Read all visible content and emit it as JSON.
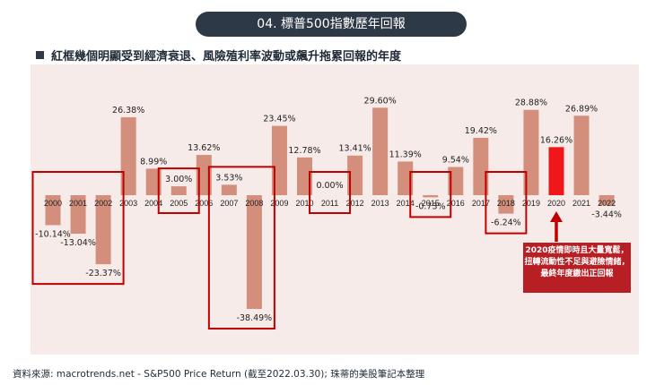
{
  "header": {
    "title": "04. 標普500指數歷年回報"
  },
  "subtitle": "紅框幾個明顯受到經濟衰退、風險殖利率波動或飆升拖累回報的年度",
  "source": "資料來源: macrotrends.net - S&P500  Price Return (截至2022.03.30); 珠蒂的美股筆記本整理",
  "annotation": "2020疫情即時且大量寬鬆，扭轉流動性不足與避險情緒，最終年度繳出正回報",
  "colors": {
    "bar": "#d38f7c",
    "highlight": "#f0171a",
    "box": "#c00000",
    "panel": "#f6ebe8",
    "arrow": "#c00000"
  },
  "chart_data": {
    "type": "bar",
    "title": "04. 標普500指數歷年回報",
    "xlabel": "",
    "ylabel": "",
    "ylim": [
      -40,
      31
    ],
    "categories": [
      "2000",
      "2001",
      "2002",
      "2003",
      "2004",
      "2005",
      "2006",
      "2007",
      "2008",
      "2009",
      "2010",
      "2011",
      "2012",
      "2013",
      "2014",
      "2015",
      "2016",
      "2017",
      "2018",
      "2019",
      "2020",
      "2021",
      "2022"
    ],
    "values": [
      -10.14,
      -13.04,
      -23.37,
      26.38,
      8.99,
      3.0,
      13.62,
      3.53,
      -38.49,
      23.45,
      12.78,
      0.0,
      13.41,
      29.6,
      11.39,
      -0.73,
      9.54,
      19.42,
      -6.24,
      28.88,
      16.26,
      26.89,
      -3.44
    ],
    "labels": [
      "-10.14%",
      "-13.04%",
      "-23.37%",
      "26.38%",
      "8.99%",
      "3.00%",
      "13.62%",
      "3.53%",
      "-38.49%",
      "23.45%",
      "12.78%",
      "0.00%",
      "13.41%",
      "29.60%",
      "11.39%",
      "-0.73%",
      "9.54%",
      "19.42%",
      "-6.24%",
      "28.88%",
      "16.26%",
      "26.89%",
      "-3.44%"
    ],
    "highlighted": [
      "2020"
    ],
    "boxed_groups": [
      [
        "2000",
        "2001",
        "2002"
      ],
      [
        "2005"
      ],
      [
        "2007",
        "2008"
      ],
      [
        "2011"
      ],
      [
        "2015"
      ],
      [
        "2018"
      ]
    ],
    "grid": false,
    "legend": "none"
  }
}
